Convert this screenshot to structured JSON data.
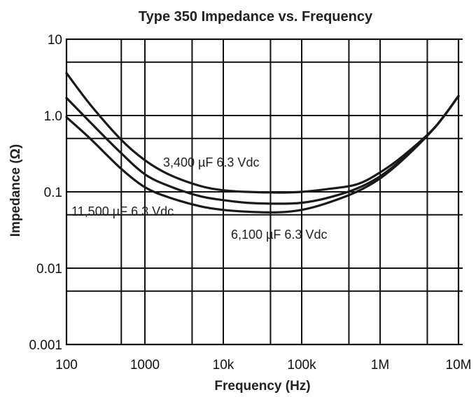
{
  "chart_data": {
    "type": "line",
    "title": "Type 350 Impedance vs. Frequency",
    "xlabel": "Frequency (Hz)",
    "ylabel": "Impedance (Ω)",
    "xscale": "log",
    "yscale": "log",
    "xlim": [
      100,
      10000000
    ],
    "ylim": [
      0.001,
      10
    ],
    "x_ticks": [
      {
        "value": 100,
        "label": "100"
      },
      {
        "value": 1000,
        "label": "1000"
      },
      {
        "value": 10000,
        "label": "10k"
      },
      {
        "value": 100000,
        "label": "100k"
      },
      {
        "value": 1000000,
        "label": "1M"
      },
      {
        "value": 10000000,
        "label": "10M"
      }
    ],
    "y_ticks": [
      {
        "value": 0.001,
        "label": "0.001"
      },
      {
        "value": 0.01,
        "label": "0.01"
      },
      {
        "value": 0.1,
        "label": "0.1"
      },
      {
        "value": 1,
        "label": "1.0"
      },
      {
        "value": 10,
        "label": "10"
      }
    ],
    "x_grid": [
      100,
      500,
      1000,
      4000,
      10000,
      40000,
      100000,
      400000,
      1000000,
      4000000,
      10000000
    ],
    "y_grid": [
      0.001,
      0.005,
      0.01,
      0.05,
      0.1,
      0.5,
      1,
      5,
      10
    ],
    "grid": true,
    "series": [
      {
        "name": "3,400 µF 6.3 Vdc",
        "x": [
          100,
          200,
          500,
          1000,
          2000,
          5000,
          10000,
          20000,
          50000,
          100000,
          200000,
          500000,
          1000000,
          2000000,
          5000000,
          10000000
        ],
        "y": [
          3.6,
          1.4,
          0.48,
          0.26,
          0.17,
          0.12,
          0.105,
          0.1,
          0.098,
          0.1,
          0.108,
          0.125,
          0.18,
          0.3,
          0.7,
          1.8
        ]
      },
      {
        "name": "6,100 µF 6.3 Vdc",
        "x": [
          100,
          200,
          500,
          1000,
          2000,
          5000,
          10000,
          20000,
          50000,
          100000,
          200000,
          500000,
          1000000,
          2000000,
          5000000,
          10000000
        ],
        "y": [
          1.7,
          0.82,
          0.32,
          0.17,
          0.12,
          0.088,
          0.078,
          0.072,
          0.07,
          0.072,
          0.082,
          0.11,
          0.16,
          0.28,
          0.7,
          1.8
        ]
      },
      {
        "name": "11,500 µF 6.3 Vdc",
        "x": [
          100,
          200,
          500,
          1000,
          2000,
          5000,
          10000,
          20000,
          50000,
          100000,
          200000,
          500000,
          1000000,
          2000000,
          5000000,
          10000000
        ],
        "y": [
          0.95,
          0.5,
          0.2,
          0.115,
          0.085,
          0.065,
          0.058,
          0.055,
          0.054,
          0.058,
          0.07,
          0.1,
          0.15,
          0.27,
          0.7,
          1.8
        ]
      }
    ],
    "annotations": [
      "3,400 µF 6.3 Vdc",
      "11,500 µF 6.3 Vdc",
      "6,100 µF 6.3 Vdc"
    ]
  }
}
